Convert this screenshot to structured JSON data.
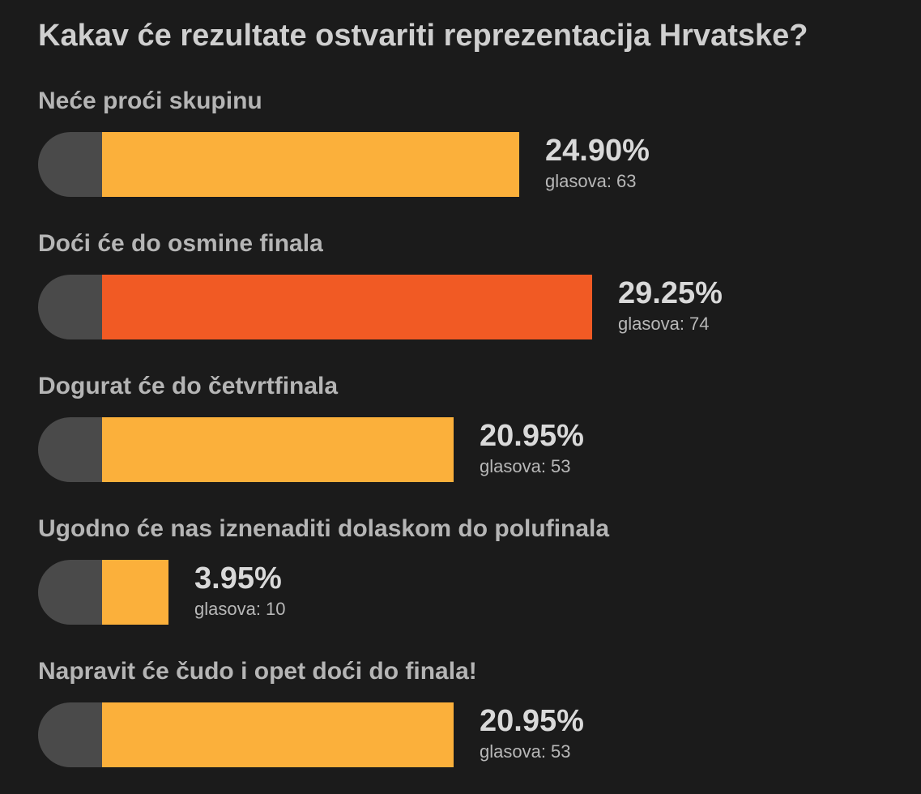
{
  "poll": {
    "title": "Kakav će rezultate ostvariti reprezentacija Hrvatske?",
    "votes_prefix": "glasova: ",
    "colors": {
      "background": "#1b1b1b",
      "bar_default": "#fbb03b",
      "bar_leader": "#f15a24",
      "bar_cap": "#4a4a4a"
    },
    "options": [
      {
        "label": "Neće proći skupinu",
        "percent_text": "24.90%",
        "percent": 24.9,
        "votes_text": "glasova: 63",
        "votes": 63
      },
      {
        "label": "Doći će do osmine finala",
        "percent_text": "29.25%",
        "percent": 29.25,
        "votes_text": "glasova: 74",
        "votes": 74
      },
      {
        "label": "Dogurat će do četvrtfinala",
        "percent_text": "20.95%",
        "percent": 20.95,
        "votes_text": "glasova: 53",
        "votes": 53
      },
      {
        "label": "Ugodno će nas iznenaditi dolaskom do polufinala",
        "percent_text": "3.95%",
        "percent": 3.95,
        "votes_text": "glasova: 10",
        "votes": 10
      },
      {
        "label": "Napravit će čudo i opet doći do finala!",
        "percent_text": "20.95%",
        "percent": 20.95,
        "votes_text": "glasova: 53",
        "votes": 53
      }
    ]
  }
}
